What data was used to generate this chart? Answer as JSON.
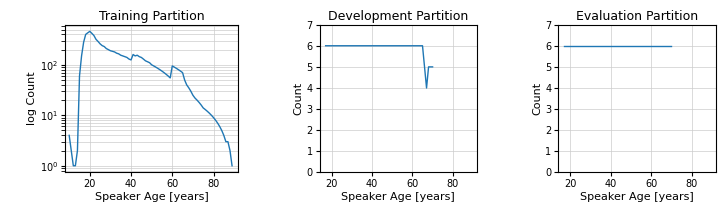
{
  "title1": "Training Partition",
  "title2": "Development Partition",
  "title3": "Evaluation Partition",
  "xlabel": "Speaker Age [years]",
  "ylabel1": "log Count",
  "ylabel2": "Count",
  "ylabel3": "Count",
  "line_color": "#1f77b4",
  "train_ages": [
    10,
    11,
    12,
    13,
    14,
    15,
    16,
    17,
    18,
    19,
    20,
    21,
    22,
    23,
    24,
    25,
    26,
    27,
    28,
    29,
    30,
    31,
    32,
    33,
    34,
    35,
    36,
    37,
    38,
    39,
    40,
    41,
    42,
    43,
    44,
    45,
    46,
    47,
    48,
    49,
    50,
    51,
    52,
    53,
    54,
    55,
    56,
    57,
    58,
    59,
    60,
    61,
    62,
    63,
    64,
    65,
    66,
    67,
    68,
    69,
    70,
    71,
    72,
    73,
    74,
    75,
    76,
    77,
    78,
    79,
    80,
    81,
    82,
    83,
    84,
    85,
    86,
    87,
    88,
    89
  ],
  "train_counts": [
    4,
    2,
    1,
    1,
    2,
    60,
    150,
    280,
    400,
    430,
    460,
    420,
    380,
    320,
    290,
    260,
    240,
    230,
    210,
    200,
    190,
    185,
    180,
    170,
    165,
    155,
    150,
    145,
    140,
    130,
    125,
    160,
    150,
    155,
    145,
    140,
    130,
    120,
    115,
    110,
    100,
    95,
    90,
    85,
    80,
    75,
    70,
    65,
    60,
    55,
    95,
    90,
    85,
    80,
    75,
    70,
    50,
    40,
    35,
    30,
    25,
    22,
    20,
    18,
    16,
    14,
    13,
    12,
    11,
    10,
    9,
    8,
    7,
    6,
    5,
    4,
    3,
    3,
    2,
    1
  ],
  "dev_ages": [
    17,
    18,
    19,
    20,
    21,
    22,
    23,
    24,
    25,
    26,
    27,
    28,
    29,
    30,
    31,
    32,
    33,
    34,
    35,
    36,
    37,
    38,
    39,
    40,
    41,
    42,
    43,
    44,
    45,
    46,
    47,
    48,
    49,
    50,
    51,
    52,
    53,
    54,
    55,
    56,
    57,
    58,
    59,
    60,
    61,
    62,
    63,
    64,
    65,
    66,
    67,
    68,
    69,
    70
  ],
  "dev_counts": [
    6,
    6,
    6,
    6,
    6,
    6,
    6,
    6,
    6,
    6,
    6,
    6,
    6,
    6,
    6,
    6,
    6,
    6,
    6,
    6,
    6,
    6,
    6,
    6,
    6,
    6,
    6,
    6,
    6,
    6,
    6,
    6,
    6,
    6,
    6,
    6,
    6,
    6,
    6,
    6,
    6,
    6,
    6,
    6,
    6,
    6,
    6,
    6,
    6,
    5,
    4,
    5,
    5,
    5
  ],
  "eval_ages": [
    17,
    18,
    19,
    20,
    21,
    22,
    23,
    24,
    25,
    26,
    27,
    28,
    29,
    30,
    31,
    32,
    33,
    34,
    35,
    36,
    37,
    38,
    39,
    40,
    41,
    42,
    43,
    44,
    45,
    46,
    47,
    48,
    49,
    50,
    51,
    52,
    53,
    54,
    55,
    56,
    57,
    58,
    59,
    60,
    61,
    62,
    63,
    64,
    65,
    66,
    67,
    68,
    69,
    70
  ],
  "eval_counts": [
    6,
    6,
    6,
    6,
    6,
    6,
    6,
    6,
    6,
    6,
    6,
    6,
    6,
    6,
    6,
    6,
    6,
    6,
    6,
    6,
    6,
    6,
    6,
    6,
    6,
    6,
    6,
    6,
    6,
    6,
    6,
    6,
    6,
    6,
    6,
    6,
    6,
    6,
    6,
    6,
    6,
    6,
    6,
    6,
    6,
    6,
    6,
    6,
    6,
    6,
    6,
    6,
    6,
    6
  ],
  "train_xlim": [
    8,
    92
  ],
  "dev_xlim": [
    14,
    92
  ],
  "eval_xlim": [
    14,
    92
  ],
  "dev_ylim": [
    0,
    7
  ],
  "eval_ylim": [
    0,
    7
  ],
  "grid_color": "#cccccc",
  "grid_linewidth": 0.5,
  "linewidth": 1.0,
  "title_fontsize": 9,
  "label_fontsize": 8,
  "tick_fontsize": 7
}
